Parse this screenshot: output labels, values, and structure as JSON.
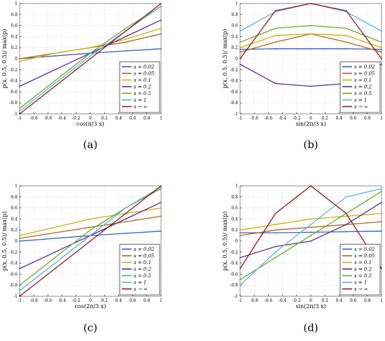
{
  "legend_labels": [
    "s = 0.02",
    "s = 0.05",
    "s = 0.1",
    "s = 0.2",
    "s = 0.5",
    "s = 1",
    "s → ∞"
  ],
  "series_colors": [
    "#2f5fbf",
    "#b5651d",
    "#c9b000",
    "#5b2a86",
    "#6aa82a",
    "#5ab0e0",
    "#8b1a1a"
  ],
  "chart_data": [
    {
      "type": "line",
      "panel_label": "(a)",
      "xlabel": "cos(π/3 x)",
      "ylabel": "p(x, 0.5, 0.5)/ max(p)",
      "xlim": [
        -1,
        1
      ],
      "ylim": [
        -1,
        1
      ],
      "x_ticks": [
        "-1",
        "-0.8",
        "-0.6",
        "-0.4",
        "-0.2",
        "0",
        "0.2",
        "0.4",
        "0.6",
        "0.8",
        "1"
      ],
      "y_ticks": [
        "1",
        "0.8",
        "0.6",
        "0.4",
        "0.2",
        "0",
        "-0.2",
        "-0.4",
        "-0.6",
        "-0.8",
        "-1"
      ],
      "legend_position": "bottom-right",
      "series": [
        {
          "name": "s = 0.02",
          "x": [
            -1,
            -0.5,
            0,
            0.5,
            1
          ],
          "y": [
            0,
            0.05,
            0.1,
            0.14,
            0.18
          ]
        },
        {
          "name": "s = 0.05",
          "x": [
            -1,
            -0.5,
            0,
            0.5,
            1
          ],
          "y": [
            0,
            0.1,
            0.2,
            0.3,
            0.45
          ]
        },
        {
          "name": "s = 0.1",
          "x": [
            -1,
            -0.5,
            0,
            0.5,
            1
          ],
          "y": [
            -0.05,
            0.1,
            0.2,
            0.35,
            0.55
          ]
        },
        {
          "name": "s = 0.2",
          "x": [
            -1,
            -0.5,
            0,
            0.5,
            1
          ],
          "y": [
            -0.5,
            -0.2,
            0.1,
            0.4,
            0.7
          ]
        },
        {
          "name": "s = 0.5",
          "x": [
            -1,
            -0.5,
            0,
            0.5,
            1
          ],
          "y": [
            -0.9,
            -0.4,
            0.1,
            0.55,
            0.95
          ]
        },
        {
          "name": "s = 1",
          "x": [
            -1,
            -0.5,
            0,
            0.5,
            1
          ],
          "y": [
            -0.95,
            -0.45,
            0.05,
            0.5,
            0.95
          ]
        },
        {
          "name": "s → ∞",
          "x": [
            -1,
            -0.5,
            0,
            0.5,
            1
          ],
          "y": [
            -1,
            -0.5,
            0,
            0.5,
            1
          ]
        }
      ]
    },
    {
      "type": "line",
      "panel_label": "(b)",
      "xlabel": "sin(2π/3 x)",
      "ylabel": "p(x, 0.5, 0.5)/ max(p)",
      "xlim": [
        -1,
        1
      ],
      "ylim": [
        -1,
        1
      ],
      "x_ticks": [
        "-1",
        "-0.8",
        "-0.6",
        "-0.4",
        "-0.2",
        "0",
        "0.2",
        "0.4",
        "0.6",
        "0.8",
        "1"
      ],
      "y_ticks": [
        "1",
        "0.8",
        "0.6",
        "0.4",
        "0.2",
        "0",
        "-0.2",
        "-0.4",
        "-0.6",
        "-0.8",
        "-1"
      ],
      "legend_position": "bottom-right",
      "series": [
        {
          "name": "s = 0.02",
          "x": [
            -1,
            -0.5,
            0,
            0.5,
            1
          ],
          "y": [
            0.17,
            0.18,
            0.18,
            0.18,
            0.17
          ]
        },
        {
          "name": "s = 0.05",
          "x": [
            -1,
            -0.5,
            0,
            0.5,
            1
          ],
          "y": [
            0.12,
            0.3,
            0.45,
            0.3,
            0.12
          ]
        },
        {
          "name": "s = 0.1",
          "x": [
            -1,
            -0.5,
            0,
            0.5,
            1
          ],
          "y": [
            0.2,
            0.42,
            0.45,
            0.42,
            0.2
          ]
        },
        {
          "name": "s = 0.2",
          "x": [
            -1,
            -0.5,
            0,
            0.5,
            1
          ],
          "y": [
            -0.1,
            -0.45,
            -0.5,
            -0.45,
            -0.1
          ]
        },
        {
          "name": "s = 0.5",
          "x": [
            -1,
            -0.5,
            0,
            0.5,
            1
          ],
          "y": [
            0.3,
            0.55,
            0.6,
            0.55,
            0.3
          ]
        },
        {
          "name": "s = 1",
          "x": [
            -1,
            -0.5,
            0,
            0.5,
            1
          ],
          "y": [
            0.5,
            0.85,
            1,
            0.85,
            0.5
          ]
        },
        {
          "name": "s → ∞",
          "x": [
            -1,
            -0.5,
            0,
            0.5,
            1
          ],
          "y": [
            0,
            0.87,
            1,
            0.87,
            0
          ]
        }
      ]
    },
    {
      "type": "line",
      "panel_label": "(c)",
      "xlabel": "cos(2π/3 x)",
      "ylabel": "p(x, 0.5, 0.5)/ max(p)",
      "xlim": [
        -1,
        1
      ],
      "ylim": [
        -1,
        1
      ],
      "x_ticks": [
        "-1",
        "-0.8",
        "-0.6",
        "-0.4",
        "-0.2",
        "0",
        "0.2",
        "0.4",
        "0.6",
        "0.8",
        "1"
      ],
      "y_ticks": [
        "1",
        "0.8",
        "0.6",
        "0.4",
        "0.2",
        "0",
        "-0.2",
        "-0.4",
        "-0.6",
        "-0.8",
        "-1"
      ],
      "legend_position": "bottom-right",
      "series": [
        {
          "name": "s = 0.02",
          "x": [
            -1,
            -0.5,
            0,
            0.5,
            1
          ],
          "y": [
            0,
            0.05,
            0.1,
            0.14,
            0.18
          ]
        },
        {
          "name": "s = 0.05",
          "x": [
            -1,
            -0.5,
            0,
            0.5,
            1
          ],
          "y": [
            0.05,
            0.15,
            0.25,
            0.35,
            0.45
          ]
        },
        {
          "name": "s = 0.1",
          "x": [
            -1,
            -0.5,
            0,
            0.5,
            1
          ],
          "y": [
            0.1,
            0.25,
            0.4,
            0.5,
            0.6
          ]
        },
        {
          "name": "s = 0.2",
          "x": [
            -1,
            -0.5,
            0,
            0.5,
            1
          ],
          "y": [
            -0.5,
            -0.2,
            0.1,
            0.4,
            0.7
          ]
        },
        {
          "name": "s = 0.5",
          "x": [
            -1,
            -0.5,
            0,
            0.5,
            1
          ],
          "y": [
            -0.8,
            -0.3,
            0.2,
            0.6,
            0.95
          ]
        },
        {
          "name": "s = 1",
          "x": [
            -1,
            -0.5,
            0,
            0.5,
            1
          ],
          "y": [
            -0.9,
            -0.4,
            0.1,
            0.6,
            0.98
          ]
        },
        {
          "name": "s → ∞",
          "x": [
            -1,
            -0.5,
            0,
            0.5,
            1
          ],
          "y": [
            -1,
            -0.5,
            0,
            0.5,
            1
          ]
        }
      ]
    },
    {
      "type": "line",
      "panel_label": "(d)",
      "xlabel": "sin(2π/3 x)",
      "ylabel": "p(x, 0.5, 0.5)/ max(p)",
      "xlim": [
        -1,
        1
      ],
      "ylim": [
        -1,
        1
      ],
      "x_ticks": [
        "-1",
        "-0.8",
        "-0.6",
        "-0.4",
        "-0.2",
        "0",
        "0.2",
        "0.4",
        "0.6",
        "0.8",
        "1"
      ],
      "y_ticks": [
        "1",
        "0.8",
        "0.6",
        "0.4",
        "0.2",
        "0",
        "-0.2",
        "-0.4",
        "-0.6",
        "-0.8",
        "-1"
      ],
      "legend_position": "bottom-right",
      "series": [
        {
          "name": "s = 0.02",
          "x": [
            -1,
            -0.5,
            0,
            0.5,
            1
          ],
          "y": [
            0.15,
            0.15,
            0.16,
            0.17,
            0.18
          ]
        },
        {
          "name": "s = 0.05",
          "x": [
            -1,
            -0.5,
            0,
            0.5,
            1
          ],
          "y": [
            0.1,
            0.2,
            0.25,
            0.3,
            0.35
          ]
        },
        {
          "name": "s = 0.1",
          "x": [
            -1,
            -0.5,
            0,
            0.5,
            1
          ],
          "y": [
            0.2,
            0.3,
            0.4,
            0.45,
            0.5
          ]
        },
        {
          "name": "s = 0.2",
          "x": [
            -1,
            -0.5,
            0,
            0.5,
            1
          ],
          "y": [
            -0.3,
            -0.1,
            0.0,
            0.3,
            0.7
          ]
        },
        {
          "name": "s = 0.5",
          "x": [
            -1,
            -0.5,
            0,
            0.5,
            1
          ],
          "y": [
            -0.7,
            -0.3,
            0.1,
            0.5,
            0.9
          ]
        },
        {
          "name": "s = 1",
          "x": [
            -1,
            -0.5,
            0,
            0.5,
            1
          ],
          "y": [
            -0.8,
            -0.2,
            0.3,
            0.8,
            0.95
          ]
        },
        {
          "name": "s → ∞",
          "x": [
            -1,
            -0.5,
            0,
            0.5,
            1
          ],
          "y": [
            -0.5,
            0.5,
            1,
            0.5,
            -0.5
          ]
        }
      ]
    }
  ]
}
